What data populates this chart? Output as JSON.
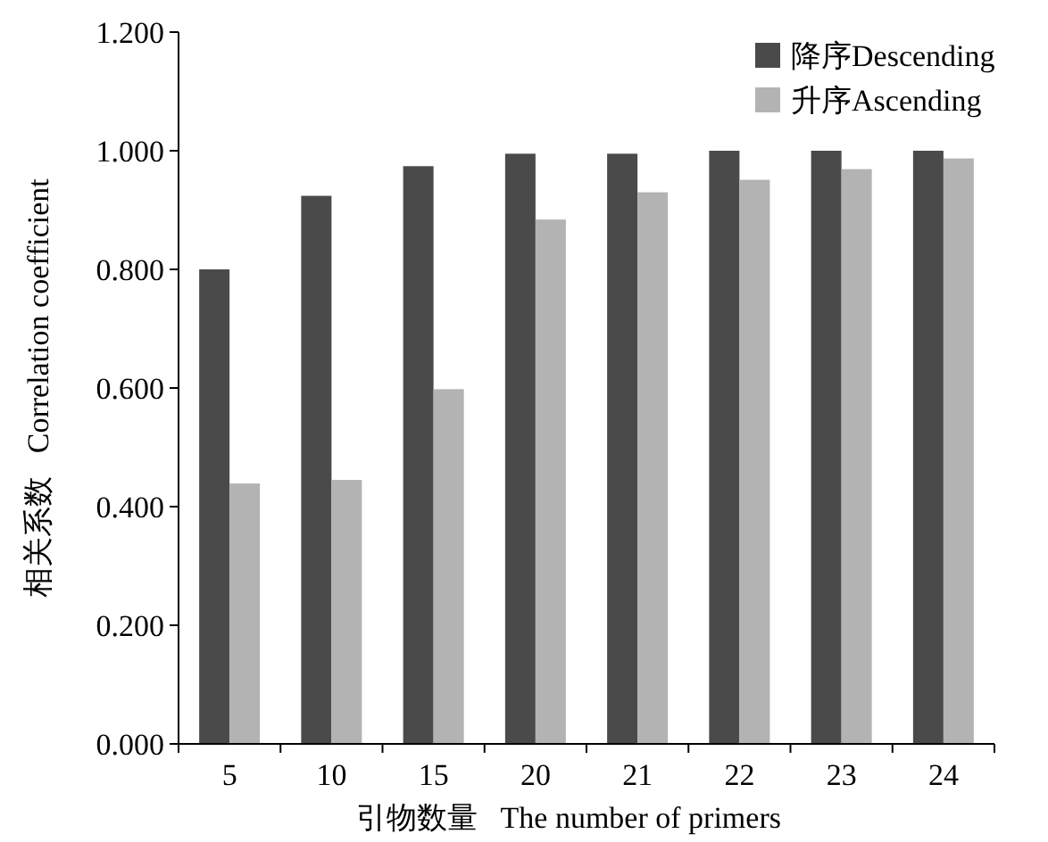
{
  "chart_data": {
    "type": "bar",
    "xlabel": "引物数量   The number of primers",
    "ylabel": "相关系数   Correlation coefficient",
    "categories": [
      "5",
      "10",
      "15",
      "20",
      "21",
      "22",
      "23",
      "24"
    ],
    "series": [
      {
        "name": "降序Descending",
        "color": "#4a4a4a",
        "values": [
          0.8,
          0.924,
          0.974,
          0.995,
          0.995,
          1.0,
          1.0,
          1.0
        ]
      },
      {
        "name": "升序Ascending",
        "color": "#b3b3b3",
        "values": [
          0.439,
          0.445,
          0.598,
          0.884,
          0.93,
          0.951,
          0.969,
          0.987
        ]
      }
    ],
    "ylim": [
      0,
      1.2
    ],
    "yticks": [
      {
        "value": 0,
        "label": "0.000"
      },
      {
        "value": 0.2,
        "label": "0.200"
      },
      {
        "value": 0.4,
        "label": "0.400"
      },
      {
        "value": 0.6,
        "label": "0.600"
      },
      {
        "value": 0.8,
        "label": "0.800"
      },
      {
        "value": 1.0,
        "label": "1.000"
      },
      {
        "value": 1.2,
        "label": "1.200"
      }
    ],
    "legend": "top right",
    "grid": false
  }
}
